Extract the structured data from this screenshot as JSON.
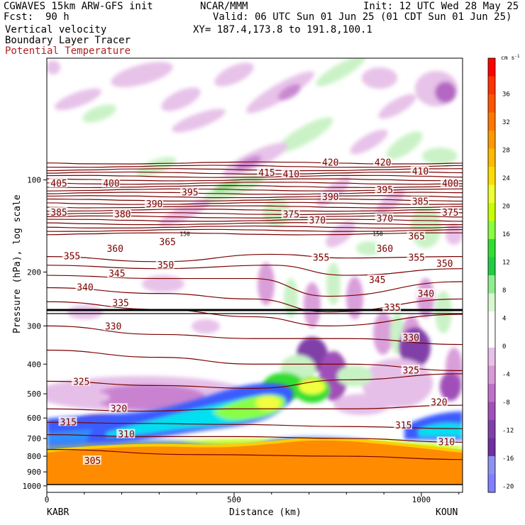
{
  "header": {
    "model": "CGWAVES 15km ARW-GFS init",
    "fcst": "Fcst:  90 h",
    "field1": "Vertical velocity",
    "field2": "Boundary Layer Tracer",
    "field3": "Potential Temperature",
    "org": "NCAR/MMM",
    "valid": "Valid: 06 UTC Sun 01 Jun 25 (01 CDT Sun 01 Jun 25)",
    "xy": "XY= 187.4,173.8 to 191.8,100.1",
    "init": "Init: 12 UTC Wed 28 May 25"
  },
  "colors": {
    "theta_line": "#7a0000",
    "tropopause": "#000000"
  },
  "chart_data": {
    "type": "heatmap",
    "xlabel": "Distance (km)",
    "ylabel": "Pressure (hPa), log scale",
    "x_ticks": [
      "0",
      "500",
      "1000"
    ],
    "x_tick_values": [
      0,
      500,
      1000
    ],
    "xlim": [
      0,
      1110
    ],
    "left_endpoint": "KABR",
    "right_endpoint": "KOUN",
    "y_scale": "log",
    "y_ticks": [
      "100",
      "200",
      "300",
      "400",
      "500",
      "600",
      "700",
      "800",
      "900",
      "1000"
    ],
    "y_tick_values": [
      100,
      200,
      300,
      400,
      500,
      600,
      700,
      800,
      900,
      1000
    ],
    "ylim": [
      1050,
      40
    ],
    "colorbar": {
      "unit": "cm s",
      "unit_exp": "-1",
      "labels": [
        "36",
        "32",
        "28",
        "24",
        "20",
        "16",
        "12",
        "8",
        "4",
        "0",
        "-4",
        "-8",
        "-12",
        "-16",
        "-20"
      ],
      "values": [
        36,
        32,
        28,
        24,
        20,
        16,
        12,
        8,
        4,
        0,
        -4,
        -8,
        -12,
        -16,
        -20
      ],
      "colors": [
        "#ff0000",
        "#ff3300",
        "#ff5500",
        "#ff7700",
        "#ff9900",
        "#ffbb00",
        "#ffdd00",
        "#eeff33",
        "#c8ff00",
        "#88ff44",
        "#33dd33",
        "#22cc44",
        "#90ee90",
        "#d8f8d0",
        "#ffffff",
        "#ffffff",
        "#e8c0ea",
        "#d89ad8",
        "#c070c8",
        "#a050b8",
        "#8040a8",
        "#7030a0",
        "#9090f0",
        "#8080ff"
      ]
    },
    "theta_labels": [
      {
        "text": "405",
        "x": 10,
        "p": 103
      },
      {
        "text": "400",
        "x": 150,
        "p": 103
      },
      {
        "text": "390",
        "x": 265,
        "p": 120
      },
      {
        "text": "395",
        "x": 360,
        "p": 110
      },
      {
        "text": "415",
        "x": 565,
        "p": 95
      },
      {
        "text": "410",
        "x": 630,
        "p": 96
      },
      {
        "text": "420",
        "x": 735,
        "p": 88
      },
      {
        "text": "420",
        "x": 875,
        "p": 88
      },
      {
        "text": "410",
        "x": 975,
        "p": 94
      },
      {
        "text": "400",
        "x": 1055,
        "p": 103
      },
      {
        "text": "395",
        "x": 880,
        "p": 108
      },
      {
        "text": "390",
        "x": 735,
        "p": 114
      },
      {
        "text": "385",
        "x": 10,
        "p": 128
      },
      {
        "text": "380",
        "x": 180,
        "p": 130
      },
      {
        "text": "385",
        "x": 975,
        "p": 118
      },
      {
        "text": "375",
        "x": 630,
        "p": 130
      },
      {
        "text": "370",
        "x": 700,
        "p": 136
      },
      {
        "text": "370",
        "x": 880,
        "p": 134
      },
      {
        "text": "375",
        "x": 1055,
        "p": 128
      },
      {
        "text": "365",
        "x": 300,
        "p": 160
      },
      {
        "text": "365",
        "x": 965,
        "p": 153
      },
      {
        "text": "360",
        "x": 160,
        "p": 168
      },
      {
        "text": "360",
        "x": 880,
        "p": 168
      },
      {
        "text": "355",
        "x": 45,
        "p": 178
      },
      {
        "text": "355",
        "x": 710,
        "p": 180
      },
      {
        "text": "355",
        "x": 965,
        "p": 180
      },
      {
        "text": "350",
        "x": 295,
        "p": 190
      },
      {
        "text": "350",
        "x": 1040,
        "p": 188
      },
      {
        "text": "345",
        "x": 165,
        "p": 203
      },
      {
        "text": "345",
        "x": 860,
        "p": 213
      },
      {
        "text": "340",
        "x": 80,
        "p": 225
      },
      {
        "text": "340",
        "x": 990,
        "p": 236
      },
      {
        "text": "335",
        "x": 175,
        "p": 253
      },
      {
        "text": "335",
        "x": 900,
        "p": 262
      },
      {
        "text": "330",
        "x": 155,
        "p": 302
      },
      {
        "text": "330",
        "x": 950,
        "p": 329
      },
      {
        "text": "325",
        "x": 70,
        "p": 458
      },
      {
        "text": "325",
        "x": 950,
        "p": 420
      },
      {
        "text": "320",
        "x": 170,
        "p": 560
      },
      {
        "text": "320",
        "x": 1025,
        "p": 535
      },
      {
        "text": "315",
        "x": 35,
        "p": 620
      },
      {
        "text": "315",
        "x": 930,
        "p": 636
      },
      {
        "text": "310",
        "x": 190,
        "p": 680
      },
      {
        "text": "310",
        "x": 1045,
        "p": 720
      },
      {
        "text": "305",
        "x": 100,
        "p": 830
      }
    ],
    "tropopause_label": "150",
    "tropopause_label_x": [
      355,
      870
    ]
  }
}
